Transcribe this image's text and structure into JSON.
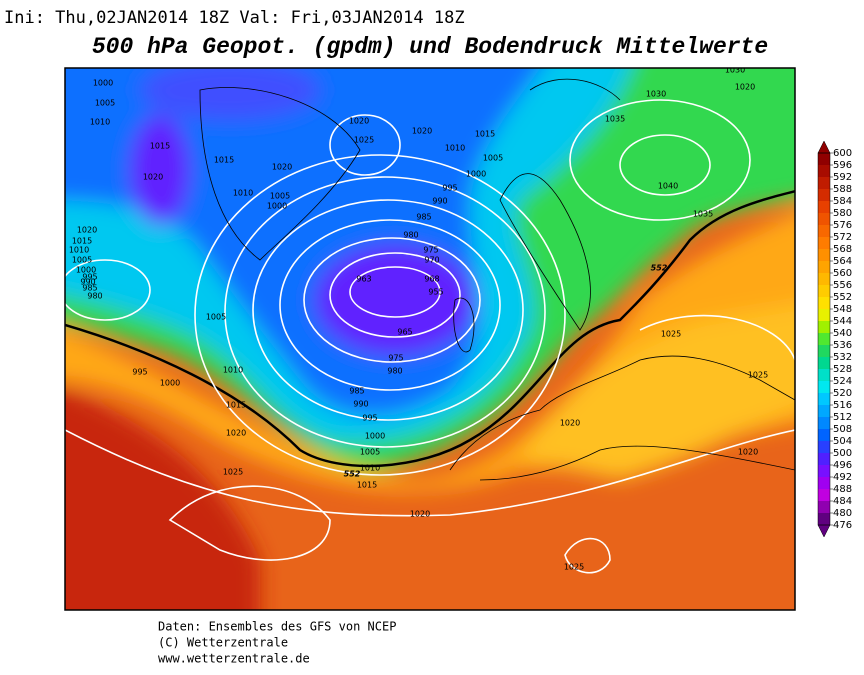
{
  "header": {
    "run_info": "Ini: Thu,02JAN2014 18Z  Val: Fri,03JAN2014 18Z",
    "title": "500 hPa Geopot. (gpdm) und Bodendruck Mittelwerte"
  },
  "isobar_labels": [
    1000,
    1005,
    1010,
    1015,
    1020,
    1015,
    1020,
    1010,
    1005,
    1000,
    1020,
    1025,
    1020,
    1015,
    1010,
    1005,
    1000,
    995,
    990,
    985,
    980,
    975,
    970,
    963,
    968,
    955,
    965,
    975,
    980,
    985,
    990,
    995,
    1000,
    1005,
    1010,
    1015,
    1020,
    1025,
    1020,
    1020,
    1025,
    1025,
    1030,
    1035,
    1040,
    1035,
    1030,
    1020,
    1020,
    1015,
    1010,
    1005,
    1000,
    995,
    990,
    985,
    980,
    1005,
    995,
    1000,
    1010,
    1015,
    1020,
    1025,
    552,
    552
  ],
  "colorbar": {
    "ticks": [
      600,
      596,
      592,
      588,
      584,
      580,
      576,
      572,
      568,
      564,
      560,
      556,
      552,
      548,
      544,
      540,
      536,
      532,
      528,
      524,
      520,
      516,
      512,
      508,
      504,
      500,
      496,
      492,
      488,
      484,
      480,
      476
    ],
    "colors": [
      "#900000",
      "#a80c00",
      "#c01c00",
      "#d42c00",
      "#e84000",
      "#f05400",
      "#f86800",
      "#ff7c00",
      "#ff9000",
      "#ffa400",
      "#ffb800",
      "#ffcc00",
      "#ffe000",
      "#e8f000",
      "#a0f000",
      "#50e830",
      "#20d860",
      "#00d890",
      "#00e0c8",
      "#00e8f0",
      "#00c8ff",
      "#00a8ff",
      "#0088ff",
      "#0064ff",
      "#2840ff",
      "#5020ff",
      "#7810ff",
      "#a000f0",
      "#c000e0",
      "#9000b0",
      "#600080"
    ]
  },
  "footer": [
    "Daten: Ensembles des GFS von NCEP",
    "(C) Wetterzentrale",
    "www.wetterzentrale.de"
  ]
}
